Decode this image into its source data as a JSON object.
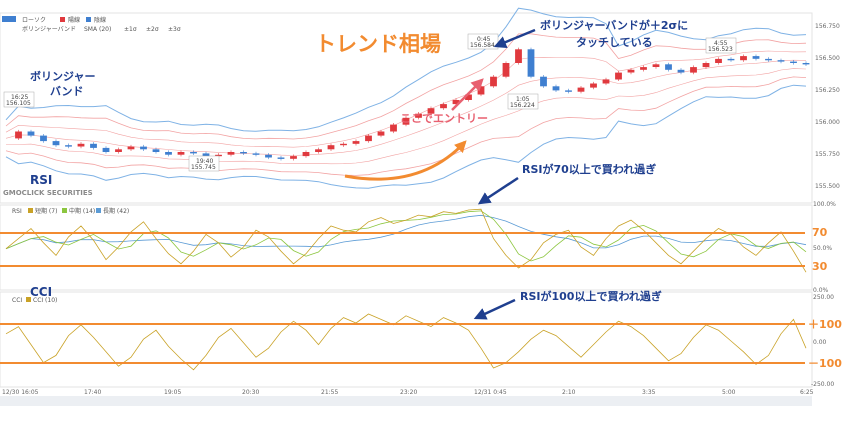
{
  "chart_data": [
    {
      "type": "candlestick",
      "legend": {
        "chart_type_label": "ローソク",
        "up_label": "陽線",
        "down_label": "陰線"
      },
      "indicator_legend": [
        "ボリンジャーバンド",
        "SMA (20)",
        "±1σ",
        "±2σ",
        "±3σ"
      ],
      "y_ticks": [
        "156.750",
        "156.500",
        "156.250",
        "156.000",
        "155.750",
        "155.500"
      ],
      "ylim": [
        155.45,
        156.8
      ],
      "close_series": [
        155.9,
        155.95,
        155.92,
        155.88,
        155.85,
        155.84,
        155.86,
        155.83,
        155.8,
        155.82,
        155.84,
        155.82,
        155.8,
        155.78,
        155.8,
        155.79,
        155.77,
        155.78,
        155.8,
        155.79,
        155.78,
        155.76,
        155.75,
        155.77,
        155.8,
        155.82,
        155.85,
        155.86,
        155.88,
        155.92,
        155.95,
        156.0,
        156.05,
        156.08,
        156.12,
        156.15,
        156.18,
        156.22,
        156.28,
        156.35,
        156.45,
        156.55,
        156.35,
        156.28,
        156.25,
        156.24,
        156.27,
        156.3,
        156.33,
        156.38,
        156.4,
        156.42,
        156.44,
        156.4,
        156.38,
        156.42,
        156.45,
        156.48,
        156.47,
        156.5,
        156.48,
        156.47,
        156.46,
        156.45,
        156.44
      ],
      "point_labels": [
        {
          "time": "16:25",
          "value": "156.105"
        },
        {
          "time": "19:40",
          "value": "155.745"
        },
        {
          "time": "0:45",
          "value": "156.584"
        },
        {
          "time": "1:05",
          "value": "156.224"
        },
        {
          "time": "4:55",
          "value": "156.523"
        }
      ]
    },
    {
      "type": "line",
      "title": "RSI",
      "legend": [
        "RSI",
        "短期 (7)",
        "中期 (14)",
        "長期 (42)"
      ],
      "y_ticks": [
        "100.0%",
        "50.0%",
        "0.0%"
      ],
      "ylim": [
        0,
        100
      ],
      "series": [
        {
          "name": "短期 (7)",
          "color": "#c9a227"
        },
        {
          "name": "中期 (14)",
          "color": "#8cc63f"
        },
        {
          "name": "長期 (42)",
          "color": "#5b9bd5"
        }
      ],
      "short_values": [
        48,
        60,
        72,
        55,
        40,
        62,
        75,
        58,
        35,
        50,
        68,
        80,
        60,
        42,
        30,
        45,
        65,
        55,
        38,
        50,
        70,
        62,
        45,
        30,
        42,
        60,
        75,
        70,
        68,
        80,
        85,
        78,
        82,
        88,
        86,
        92,
        90,
        94,
        95,
        60,
        40,
        25,
        35,
        55,
        65,
        70,
        50,
        40,
        60,
        75,
        82,
        70,
        55,
        40,
        30,
        45,
        60,
        72,
        65,
        50,
        40,
        55,
        68,
        45,
        20
      ],
      "overbought_level": 70,
      "oversold_level": 30
    },
    {
      "type": "line",
      "title": "CCI",
      "legend": [
        "CCI",
        "CCI (10)"
      ],
      "y_ticks": [
        "250.00",
        "0.00",
        "-250.00"
      ],
      "ylim": [
        -250,
        250
      ],
      "series": [
        {
          "name": "CCI (10)",
          "color": "#c9a227"
        }
      ],
      "values": [
        40,
        80,
        -20,
        -120,
        -80,
        30,
        90,
        20,
        -60,
        -140,
        -90,
        10,
        60,
        -30,
        -100,
        -160,
        -80,
        20,
        70,
        -10,
        -90,
        -40,
        50,
        110,
        60,
        -20,
        70,
        130,
        100,
        150,
        120,
        90,
        140,
        110,
        80,
        130,
        100,
        60,
        -40,
        -150,
        -120,
        -60,
        10,
        60,
        30,
        -30,
        -90,
        -20,
        50,
        110,
        80,
        30,
        -40,
        -110,
        -70,
        20,
        90,
        60,
        0,
        -60,
        -130,
        -80,
        40,
        120,
        -40
      ],
      "overbought_level": 100,
      "oversold_level": -100
    }
  ],
  "x_tick_labels": [
    "12/30 16:05",
    "17:40",
    "19:05",
    "20:30",
    "21:55",
    "23:20",
    "12/31 0:45",
    "2:10",
    "3:35",
    "5:00",
    "6:25"
  ],
  "watermark": "GMOCLICK SECURITIES",
  "annotations": {
    "trend": "トレンド相場",
    "bb_touch_1": "ボリンジャーバンドが＋2σに",
    "bb_touch_2": "タッチしている",
    "bb_side_1": "ボリンジャー",
    "bb_side_2": "バンド",
    "entry": "ここでエントリー",
    "rsi_label": "RSI",
    "rsi_overbought": "RSIが70以上で買われ過ぎ",
    "rsi_level_70": "70",
    "rsi_level_30": "30",
    "cci_label": "CCI",
    "cci_overbought": "RSIが100以上で買われ過ぎ",
    "cci_level_p100": "＋100",
    "cci_level_m100": "－100"
  },
  "colors": {
    "up_candle": "#e0393e",
    "down_candle": "#3f7fd0",
    "bb_outer": "#7fb2e5",
    "bb_inner": "#f2a3a3",
    "threshold": "#f28b30",
    "annotation_text": "#1f3f8f",
    "trend_text": "#f28b30",
    "entry_text": "#e86070",
    "arrow_blue": "#1f3f8f"
  }
}
